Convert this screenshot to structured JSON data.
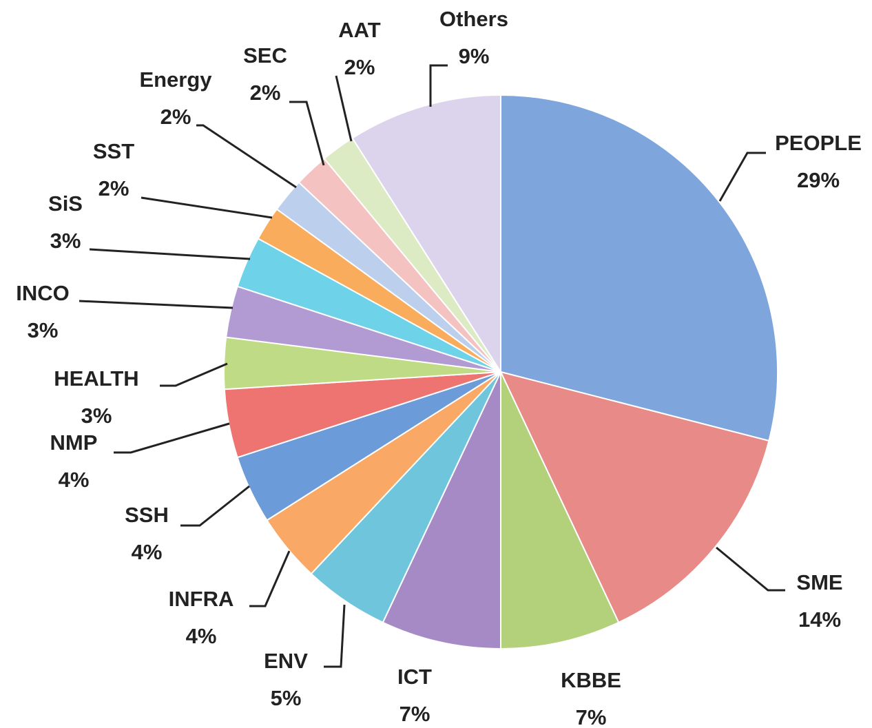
{
  "chart_data": {
    "type": "pie",
    "categories": [
      "PEOPLE",
      "SME",
      "KBBE",
      "ICT",
      "ENV",
      "INFRA",
      "SSH",
      "NMP",
      "HEALTH",
      "INCO",
      "SiS",
      "SST",
      "Energy",
      "SEC",
      "AAT",
      "Others"
    ],
    "values": [
      29,
      14,
      7,
      7,
      5,
      4,
      4,
      4,
      3,
      3,
      3,
      2,
      2,
      2,
      2,
      9
    ],
    "value_labels": [
      "29%",
      "14%",
      "7%",
      "7%",
      "5%",
      "4%",
      "4%",
      "4%",
      "3%",
      "3%",
      "3%",
      "2%",
      "2%",
      "2%",
      "2%",
      "9%"
    ],
    "colors": [
      "#7ea6dc",
      "#e88a88",
      "#b3d07a",
      "#a58ac6",
      "#6fc6dc",
      "#f9a866",
      "#6b9bd8",
      "#ee7472",
      "#c0db86",
      "#b29ad3",
      "#6ed2e8",
      "#f9ac5c",
      "#bcd0ee",
      "#f5c2c2",
      "#dcebc3",
      "#dcd3ec"
    ]
  }
}
